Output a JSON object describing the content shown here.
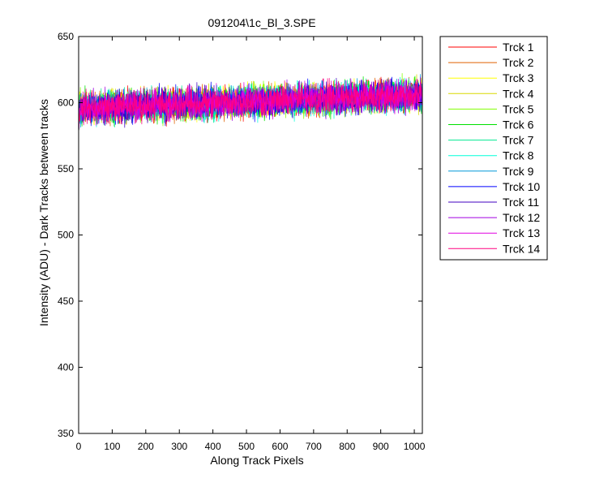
{
  "chart_data": {
    "type": "line",
    "title": "091204\\1c_Bl_3.SPE",
    "xlabel": "Along Track Pixels",
    "ylabel": "Intensity (ADU) - Dark Tracks between tracks",
    "xlim": [
      0,
      1024
    ],
    "ylim": [
      350,
      650
    ],
    "xticks": [
      0,
      100,
      200,
      300,
      400,
      500,
      600,
      700,
      800,
      900,
      1000
    ],
    "yticks": [
      350,
      400,
      450,
      500,
      550,
      600,
      650
    ],
    "grid": false,
    "legend_position": "outside-right",
    "x": {
      "start": 0,
      "end": 1024,
      "points": 1024
    },
    "trend": {
      "at_x0": 596,
      "at_x1024": 606
    },
    "noise": {
      "typical_min": 580,
      "typical_max": 630
    },
    "series": [
      {
        "name": "Trck 1",
        "color": "#ff0000"
      },
      {
        "name": "Trck 2",
        "color": "#e06000"
      },
      {
        "name": "Trck 3",
        "color": "#ffff00"
      },
      {
        "name": "Trck 4",
        "color": "#d8d800"
      },
      {
        "name": "Trck 5",
        "color": "#80ff00"
      },
      {
        "name": "Trck 6",
        "color": "#00e000"
      },
      {
        "name": "Trck 7",
        "color": "#00e890"
      },
      {
        "name": "Trck 8",
        "color": "#00ffd8"
      },
      {
        "name": "Trck 9",
        "color": "#0098d8"
      },
      {
        "name": "Trck 10",
        "color": "#0000ff"
      },
      {
        "name": "Trck 11",
        "color": "#4000c0"
      },
      {
        "name": "Trck 12",
        "color": "#a000e0"
      },
      {
        "name": "Trck 13",
        "color": "#e000e0"
      },
      {
        "name": "Trck 14",
        "color": "#ff0080"
      }
    ]
  }
}
